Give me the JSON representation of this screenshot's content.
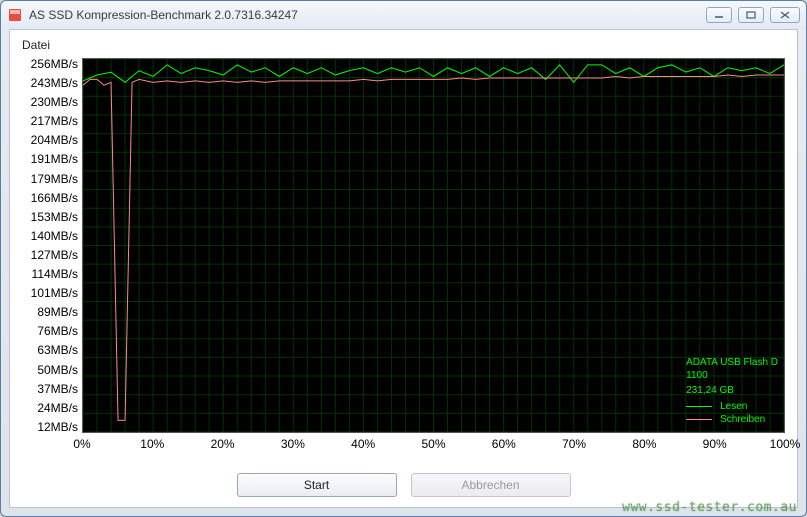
{
  "window": {
    "title": "AS SSD Kompression-Benchmark 2.0.7316.34247"
  },
  "menu": {
    "file": "Datei"
  },
  "chart": {
    "type": "line",
    "background_color": "#000000",
    "grid_color": "#003300",
    "y_ticks": [
      "256MB/s",
      "243MB/s",
      "230MB/s",
      "217MB/s",
      "204MB/s",
      "191MB/s",
      "179MB/s",
      "166MB/s",
      "153MB/s",
      "140MB/s",
      "127MB/s",
      "114MB/s",
      "101MB/s",
      "89MB/s",
      "76MB/s",
      "63MB/s",
      "50MB/s",
      "37MB/s",
      "24MB/s",
      "12MB/s"
    ],
    "x_ticks": [
      {
        "label": "0%",
        "pos": 0
      },
      {
        "label": "10%",
        "pos": 10
      },
      {
        "label": "20%",
        "pos": 20
      },
      {
        "label": "30%",
        "pos": 30
      },
      {
        "label": "40%",
        "pos": 40
      },
      {
        "label": "50%",
        "pos": 50
      },
      {
        "label": "60%",
        "pos": 60
      },
      {
        "label": "70%",
        "pos": 70
      },
      {
        "label": "80%",
        "pos": 80
      },
      {
        "label": "90%",
        "pos": 90
      },
      {
        "label": "100%",
        "pos": 100
      }
    ],
    "ylim": [
      0,
      256
    ],
    "xlim": [
      0,
      100
    ],
    "grid_v_count": 50,
    "grid_h_count": 20,
    "series": [
      {
        "name": "Lesen",
        "color": "#00ff00",
        "line_width": 1,
        "points": [
          [
            0,
            241
          ],
          [
            2,
            245
          ],
          [
            4,
            247
          ],
          [
            6,
            240
          ],
          [
            8,
            248
          ],
          [
            10,
            244
          ],
          [
            12,
            252
          ],
          [
            14,
            246
          ],
          [
            16,
            250
          ],
          [
            18,
            248
          ],
          [
            20,
            245
          ],
          [
            22,
            252
          ],
          [
            24,
            247
          ],
          [
            26,
            250
          ],
          [
            28,
            244
          ],
          [
            30,
            250
          ],
          [
            32,
            246
          ],
          [
            34,
            250
          ],
          [
            36,
            245
          ],
          [
            38,
            248
          ],
          [
            40,
            250
          ],
          [
            42,
            246
          ],
          [
            44,
            250
          ],
          [
            46,
            247
          ],
          [
            48,
            250
          ],
          [
            50,
            244
          ],
          [
            52,
            250
          ],
          [
            54,
            246
          ],
          [
            56,
            250
          ],
          [
            58,
            244
          ],
          [
            60,
            250
          ],
          [
            62,
            246
          ],
          [
            64,
            250
          ],
          [
            66,
            242
          ],
          [
            68,
            252
          ],
          [
            70,
            240
          ],
          [
            72,
            252
          ],
          [
            74,
            252
          ],
          [
            76,
            246
          ],
          [
            78,
            250
          ],
          [
            80,
            244
          ],
          [
            82,
            250
          ],
          [
            84,
            252
          ],
          [
            86,
            247
          ],
          [
            88,
            250
          ],
          [
            90,
            244
          ],
          [
            92,
            250
          ],
          [
            94,
            248
          ],
          [
            96,
            250
          ],
          [
            98,
            246
          ],
          [
            100,
            252
          ]
        ]
      },
      {
        "name": "Schreiben",
        "color": "#ff8888",
        "line_width": 1,
        "points": [
          [
            0,
            238
          ],
          [
            1,
            242
          ],
          [
            2,
            242
          ],
          [
            3,
            238
          ],
          [
            4,
            240
          ],
          [
            5,
            8
          ],
          [
            6,
            8
          ],
          [
            7,
            240
          ],
          [
            8,
            242
          ],
          [
            10,
            240
          ],
          [
            12,
            241
          ],
          [
            14,
            240
          ],
          [
            16,
            241
          ],
          [
            18,
            240
          ],
          [
            20,
            241
          ],
          [
            22,
            240
          ],
          [
            24,
            241
          ],
          [
            26,
            240
          ],
          [
            28,
            241
          ],
          [
            30,
            241
          ],
          [
            32,
            241
          ],
          [
            34,
            241
          ],
          [
            36,
            241
          ],
          [
            38,
            241
          ],
          [
            40,
            242
          ],
          [
            42,
            241
          ],
          [
            44,
            242
          ],
          [
            46,
            242
          ],
          [
            48,
            242
          ],
          [
            50,
            242
          ],
          [
            52,
            242
          ],
          [
            54,
            243
          ],
          [
            56,
            242
          ],
          [
            58,
            243
          ],
          [
            60,
            243
          ],
          [
            62,
            243
          ],
          [
            64,
            243
          ],
          [
            66,
            243
          ],
          [
            68,
            243
          ],
          [
            70,
            243
          ],
          [
            72,
            243
          ],
          [
            74,
            243
          ],
          [
            76,
            244
          ],
          [
            78,
            243
          ],
          [
            80,
            244
          ],
          [
            82,
            244
          ],
          [
            84,
            244
          ],
          [
            86,
            244
          ],
          [
            88,
            244
          ],
          [
            90,
            244
          ],
          [
            92,
            245
          ],
          [
            94,
            244
          ],
          [
            96,
            245
          ],
          [
            98,
            245
          ],
          [
            100,
            245
          ]
        ]
      }
    ],
    "info": {
      "device": "ADATA USB Flash D",
      "model": "1100",
      "capacity": "231,24 GB",
      "legend": [
        {
          "color": "#00ff00",
          "label": "Lesen"
        },
        {
          "color": "#ff8888",
          "label": "Schreiben"
        }
      ]
    }
  },
  "buttons": {
    "start": "Start",
    "abort": "Abbrechen"
  },
  "watermark": "www.ssd-tester.com.au"
}
